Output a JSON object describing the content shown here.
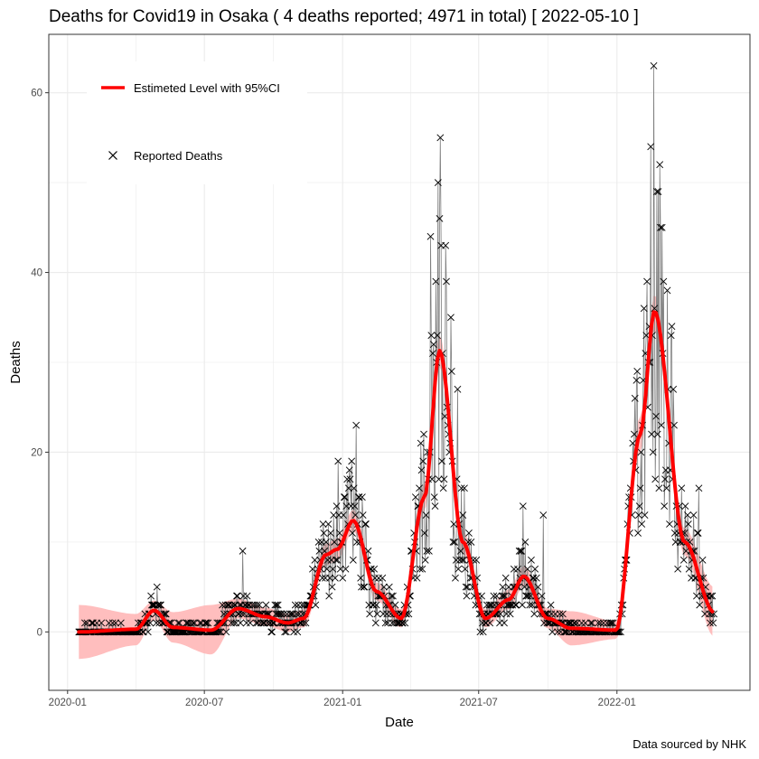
{
  "chart_data": {
    "type": "line",
    "title": "Deaths for Covid19 in Osaka ( 4 deaths reported; 4971 in total)  [ 2022-05-10 ]",
    "xlabel": "Date",
    "ylabel": "Deaths",
    "caption": "Data sourced by NHK",
    "grid": true,
    "legend_position": "top-left",
    "x_type": "date",
    "xlim": [
      "2019-12-07",
      "2022-06-27"
    ],
    "ylim": [
      -6.5,
      66.5
    ],
    "x_ticks": [
      {
        "date": "2020-01-01",
        "label": "2020-01"
      },
      {
        "date": "2020-07-01",
        "label": "2020-07"
      },
      {
        "date": "2021-01-01",
        "label": "2021-01"
      },
      {
        "date": "2021-07-01",
        "label": "2021-07"
      },
      {
        "date": "2022-01-01",
        "label": "2022-01"
      }
    ],
    "y_ticks": [
      0,
      20,
      40,
      60
    ],
    "colors": {
      "estimate_line": "#ff0000",
      "ci_band": "#ffb3b3",
      "reported_line": "#7f7f7f",
      "reported_marker": "#000000",
      "grid": "#ebebeb",
      "panel_border": "#333333"
    },
    "series": [
      {
        "name": "Estimeted Level with 95%CI",
        "kind": "smooth_with_ci",
        "points": [
          {
            "date": "2020-01-16",
            "y": 0,
            "lo": -3,
            "hi": 3
          },
          {
            "date": "2020-04-01",
            "y": 0.3,
            "lo": -1.5,
            "hi": 2
          },
          {
            "date": "2020-04-25",
            "y": 2.4,
            "lo": 1.3,
            "hi": 3.5
          },
          {
            "date": "2020-05-20",
            "y": 0.5,
            "lo": -1.2,
            "hi": 2.2
          },
          {
            "date": "2020-07-10",
            "y": 0.2,
            "lo": -2.5,
            "hi": 3
          },
          {
            "date": "2020-08-15",
            "y": 2.6,
            "lo": 1.5,
            "hi": 3.7
          },
          {
            "date": "2020-09-20",
            "y": 1.7,
            "lo": 0.7,
            "hi": 2.7
          },
          {
            "date": "2020-10-20",
            "y": 1.0,
            "lo": 0,
            "hi": 2
          },
          {
            "date": "2020-11-10",
            "y": 1.5,
            "lo": 0.5,
            "hi": 2.5
          },
          {
            "date": "2020-12-10",
            "y": 8.6,
            "lo": 7.4,
            "hi": 9.8
          },
          {
            "date": "2020-12-25",
            "y": 9.2,
            "lo": 8,
            "hi": 10.4
          },
          {
            "date": "2021-01-15",
            "y": 12.4,
            "lo": 11.2,
            "hi": 13.6
          },
          {
            "date": "2021-02-15",
            "y": 4.5,
            "lo": 3.5,
            "hi": 5.5
          },
          {
            "date": "2021-03-20",
            "y": 1.5,
            "lo": 0.5,
            "hi": 2.5
          },
          {
            "date": "2021-04-20",
            "y": 15,
            "lo": 13.5,
            "hi": 16.5
          },
          {
            "date": "2021-05-10",
            "y": 31.3,
            "lo": 29.5,
            "hi": 33
          },
          {
            "date": "2021-06-10",
            "y": 10,
            "lo": 8.7,
            "hi": 11.3
          },
          {
            "date": "2021-07-10",
            "y": 1.5,
            "lo": 0.5,
            "hi": 2.5
          },
          {
            "date": "2021-08-10",
            "y": 3.6,
            "lo": 2.5,
            "hi": 4.7
          },
          {
            "date": "2021-08-30",
            "y": 6.2,
            "lo": 5.1,
            "hi": 7.3
          },
          {
            "date": "2021-10-01",
            "y": 1.5,
            "lo": 0.4,
            "hi": 2.6
          },
          {
            "date": "2021-11-01",
            "y": 0.4,
            "lo": -1.5,
            "hi": 2.3
          },
          {
            "date": "2021-12-31",
            "y": 0.2,
            "lo": -0.8,
            "hi": 1.2
          },
          {
            "date": "2022-02-01",
            "y": 22,
            "lo": 20,
            "hi": 24
          },
          {
            "date": "2022-02-20",
            "y": 35.7,
            "lo": 33.5,
            "hi": 37.5
          },
          {
            "date": "2022-04-01",
            "y": 10,
            "lo": 8.5,
            "hi": 11.5
          },
          {
            "date": "2022-05-10",
            "y": 2.2,
            "lo": -0.5,
            "hi": 5
          }
        ]
      },
      {
        "name": "Reported Deaths",
        "kind": "daily_points",
        "start_date": "2020-01-16",
        "end_date": "2022-05-10",
        "highlights": [
          {
            "date": "2020-04-29",
            "y": 5
          },
          {
            "date": "2020-08-21",
            "y": 9
          },
          {
            "date": "2020-12-06",
            "y": 12
          },
          {
            "date": "2020-12-26",
            "y": 19
          },
          {
            "date": "2021-01-13",
            "y": 19
          },
          {
            "date": "2021-01-19",
            "y": 23
          },
          {
            "date": "2021-04-28",
            "y": 44
          },
          {
            "date": "2021-05-08",
            "y": 50
          },
          {
            "date": "2021-05-11",
            "y": 55
          },
          {
            "date": "2021-05-25",
            "y": 35
          },
          {
            "date": "2021-06-03",
            "y": 27
          },
          {
            "date": "2021-08-29",
            "y": 14
          },
          {
            "date": "2021-09-25",
            "y": 13
          },
          {
            "date": "2022-02-15",
            "y": 54
          },
          {
            "date": "2022-02-19",
            "y": 63
          },
          {
            "date": "2022-02-23",
            "y": 49
          },
          {
            "date": "2022-02-27",
            "y": 52
          },
          {
            "date": "2022-03-02",
            "y": 45
          },
          {
            "date": "2022-03-04",
            "y": 39
          },
          {
            "date": "2022-03-15",
            "y": 34
          },
          {
            "date": "2022-04-20",
            "y": 16
          }
        ]
      }
    ]
  }
}
